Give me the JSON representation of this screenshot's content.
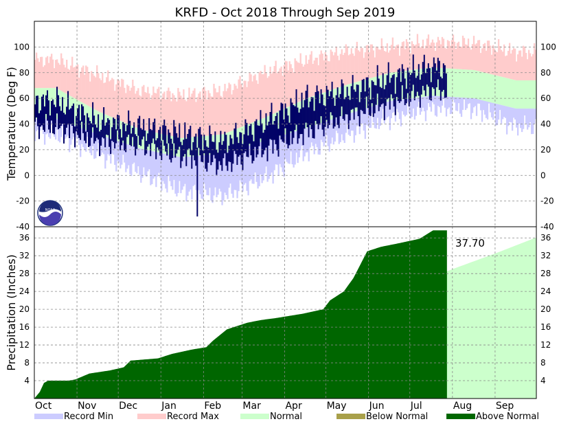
{
  "chart_data": [
    {
      "type": "area",
      "panel": "temperature",
      "title": "KRFD - Oct 2018 Through Sep 2019",
      "ylabel": "Temperature (Deg F)",
      "ylim": [
        -40,
        120
      ],
      "yticks": [
        -40,
        -20,
        0,
        20,
        40,
        60,
        80,
        100
      ],
      "grid": true,
      "days": 365,
      "observed_days": 300,
      "series": [
        {
          "name": "Record Min",
          "color": "#ccccff",
          "monthly_mean": [
            32,
            17,
            2,
            -12,
            -16,
            -2,
            18,
            32,
            45,
            52,
            52,
            38
          ]
        },
        {
          "name": "Record Max",
          "color": "#ffcccc",
          "monthly_mean": [
            90,
            78,
            66,
            62,
            66,
            80,
            90,
            97,
            100,
            104,
            103,
            96
          ]
        },
        {
          "name": "Normal",
          "color": "#ccffcc",
          "normal_high": [
            68,
            50,
            36,
            29,
            32,
            45,
            60,
            71,
            80,
            84,
            82,
            74
          ],
          "normal_low": [
            44,
            32,
            21,
            14,
            17,
            27,
            37,
            48,
            58,
            62,
            60,
            52
          ]
        },
        {
          "name": "Observed",
          "color": "#000066",
          "monthly_high": [
            58,
            42,
            38,
            32,
            26,
            42,
            60,
            66,
            76,
            85,
            82
          ],
          "monthly_low": [
            38,
            26,
            24,
            15,
            8,
            20,
            34,
            46,
            56,
            66,
            64
          ],
          "extremes": {
            "min": -32,
            "min_month": "Jan",
            "max": 94,
            "max_month": "Jul"
          }
        }
      ]
    },
    {
      "type": "area",
      "panel": "precipitation",
      "ylabel": "Precipitation (Inches)",
      "ylim": [
        0,
        38.5
      ],
      "yticks": [
        4,
        8,
        12,
        16,
        20,
        24,
        28,
        32,
        36
      ],
      "grid": true,
      "categories": [
        "Oct",
        "Nov",
        "Dec",
        "Jan",
        "Feb",
        "Mar",
        "Apr",
        "May",
        "Jun",
        "Jul",
        "Aug",
        "Sep"
      ],
      "normal_cumulative_month_start": [
        0,
        2.7,
        5.4,
        7.4,
        9.0,
        10.5,
        12.8,
        16.4,
        20.9,
        25.2,
        29.0,
        32.5,
        36.1
      ],
      "observed_cumulative_points": [
        [
          0,
          0
        ],
        [
          4,
          1.5
        ],
        [
          7,
          3.5
        ],
        [
          10,
          4.0
        ],
        [
          25,
          4.0
        ],
        [
          30,
          4.3
        ],
        [
          40,
          5.6
        ],
        [
          55,
          6.3
        ],
        [
          65,
          7.0
        ],
        [
          70,
          8.5
        ],
        [
          90,
          9.0
        ],
        [
          100,
          10.0
        ],
        [
          115,
          11.0
        ],
        [
          125,
          11.5
        ],
        [
          130,
          13.0
        ],
        [
          140,
          15.5
        ],
        [
          155,
          17.0
        ],
        [
          165,
          17.6
        ],
        [
          175,
          18.0
        ],
        [
          185,
          18.5
        ],
        [
          195,
          19.0
        ],
        [
          210,
          20.0
        ],
        [
          215,
          22.0
        ],
        [
          225,
          24.0
        ],
        [
          232,
          27.0
        ],
        [
          242,
          33.0
        ],
        [
          252,
          34.0
        ],
        [
          265,
          34.8
        ],
        [
          280,
          35.8
        ],
        [
          290,
          37.7
        ],
        [
          300,
          37.7
        ]
      ],
      "final_total_label": "37.70",
      "legend": [
        {
          "label": "Record Min",
          "color": "#ccccff"
        },
        {
          "label": "Record Max",
          "color": "#ffcccc"
        },
        {
          "label": "Normal",
          "color": "#ccffcc"
        },
        {
          "label": "Below Normal",
          "color": "#a8a04a"
        },
        {
          "label": "Above Normal",
          "color": "#006600"
        }
      ]
    }
  ]
}
